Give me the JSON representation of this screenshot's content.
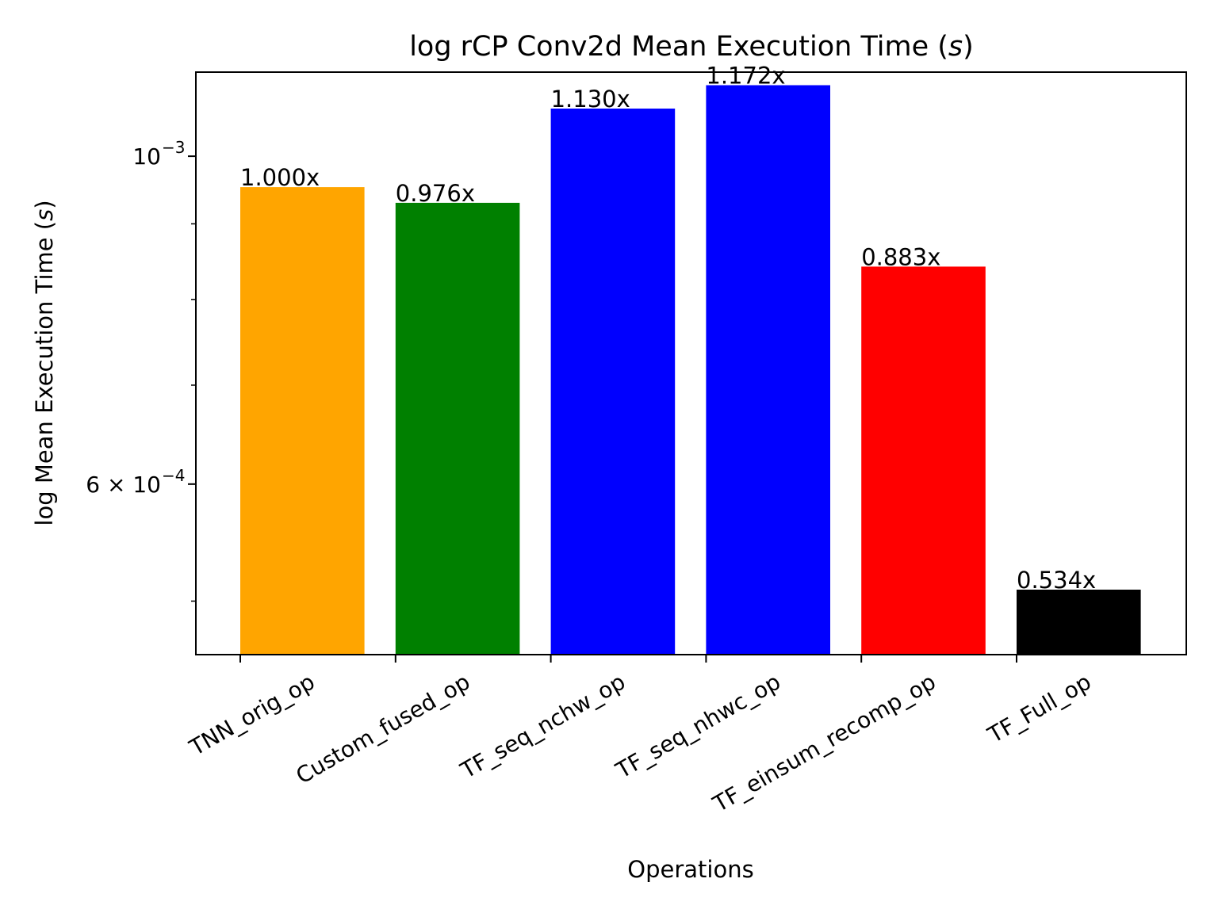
{
  "chart_data": {
    "type": "bar",
    "title": "log rCP Conv2d Mean Execution Time ($s$)",
    "title_parts": {
      "main": "log rCP Conv2d Mean Execution Time (",
      "unit": "s",
      "close": ")"
    },
    "xlabel": "Operations",
    "ylabel": "log Mean Execution Time ($s$)",
    "ylabel_parts": {
      "main": "log Mean Execution Time (",
      "unit": "s",
      "close": ")"
    },
    "yscale": "log",
    "ylim": [
      0.00046,
      0.00114
    ],
    "categories": [
      "TNN_orig_op",
      "Custom_fused_op",
      "TF_seq_nchw_op",
      "TF_seq_nhwc_op",
      "TF_einsum_recomp_op",
      "TF_Full_op"
    ],
    "values": [
      0.000953,
      0.00093,
      0.001077,
      0.001117,
      0.000842,
      0.000509
    ],
    "bar_labels": [
      "1.000x",
      "0.976x",
      "1.130x",
      "1.172x",
      "0.883x",
      "0.534x"
    ],
    "colors": [
      "#ffa500",
      "#008000",
      "#0000ff",
      "#0000ff",
      "#ff0000",
      "#000000"
    ],
    "major_yticks": [
      {
        "value": 0.001,
        "label": "10",
        "exp": "−3",
        "mantissa": ""
      },
      {
        "value": 0.0006,
        "label": "6 × 10",
        "exp": "−4",
        "mantissa": "6 × "
      }
    ],
    "minor_yticks": [
      0.0005,
      0.0007,
      0.0008,
      0.0009
    ],
    "grid": false,
    "legend": "none"
  }
}
